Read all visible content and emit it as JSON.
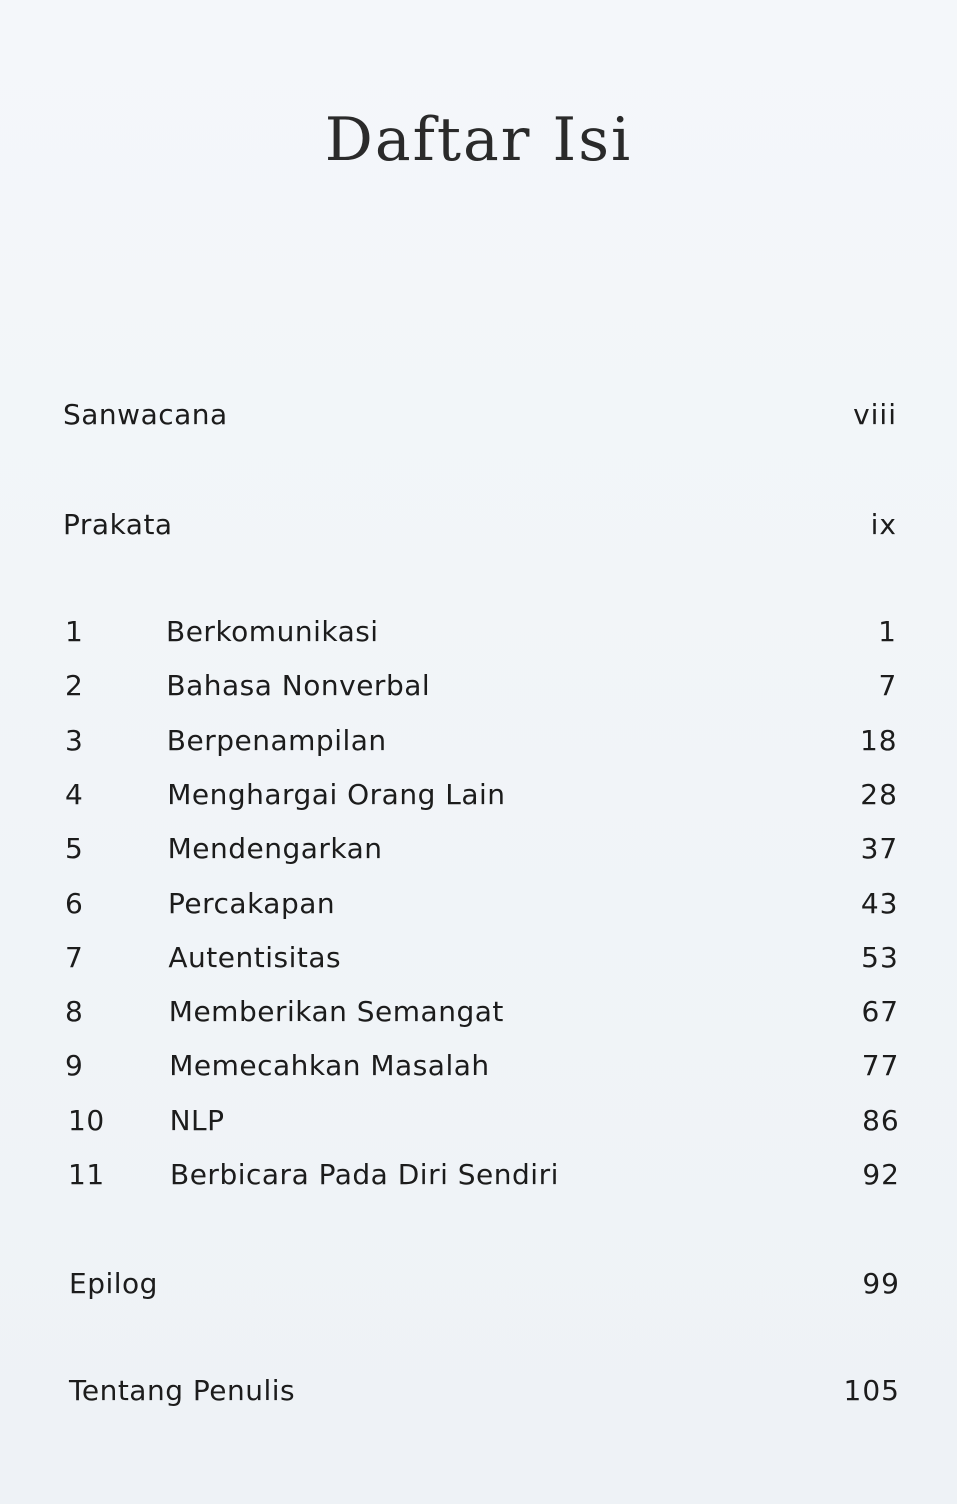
{
  "header": {
    "title": "Daftar Isi"
  },
  "front_matter": [
    {
      "label": "Sanwacana",
      "page": "viii"
    },
    {
      "label": "Prakata",
      "page": "ix"
    }
  ],
  "chapters": [
    {
      "number": "1",
      "label": "Berkomunikasi",
      "page": "1"
    },
    {
      "number": "2",
      "label": "Bahasa Nonverbal",
      "page": "7"
    },
    {
      "number": "3",
      "label": "Berpenampilan",
      "page": "18"
    },
    {
      "number": "4",
      "label": "Menghargai Orang Lain",
      "page": "28"
    },
    {
      "number": "5",
      "label": "Mendengarkan",
      "page": "37"
    },
    {
      "number": "6",
      "label": "Percakapan",
      "page": "43"
    },
    {
      "number": "7",
      "label": "Autentisitas",
      "page": "53"
    },
    {
      "number": "8",
      "label": "Memberikan Semangat",
      "page": "67"
    },
    {
      "number": "9",
      "label": "Memecahkan Masalah",
      "page": "77"
    },
    {
      "number": "10",
      "label": "NLP",
      "page": "86"
    },
    {
      "number": "11",
      "label": "Berbicara Pada Diri Sendiri",
      "page": "92"
    }
  ],
  "back_matter": [
    {
      "label": "Epilog",
      "page": "99"
    },
    {
      "label": "Tentang Penulis",
      "page": "105"
    }
  ]
}
